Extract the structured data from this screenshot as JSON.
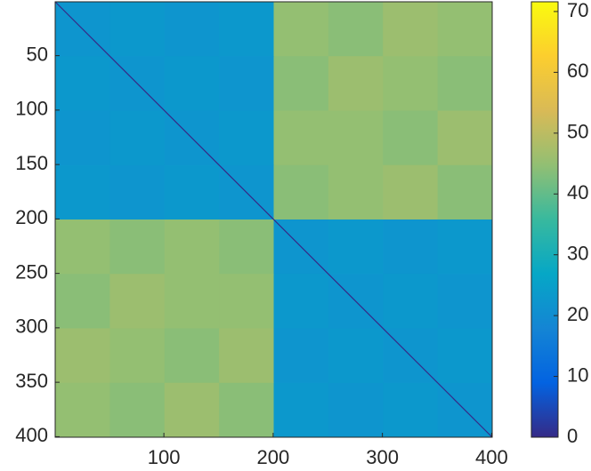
{
  "chart_data": {
    "type": "heatmap",
    "x_edges": [
      0.5,
      50.5,
      100.5,
      150.5,
      200.5,
      250.5,
      300.5,
      350.5,
      400.5
    ],
    "y_edges": [
      0.5,
      50.5,
      100.5,
      150.5,
      200.5,
      250.5,
      300.5,
      350.5,
      400.5
    ],
    "z": [
      [
        22,
        23,
        22,
        23,
        45,
        44,
        46,
        45
      ],
      [
        23,
        22,
        23,
        22,
        44,
        46,
        45,
        44
      ],
      [
        22,
        23,
        22,
        23,
        45,
        45,
        44,
        46
      ],
      [
        23,
        22,
        23,
        22,
        44,
        45,
        46,
        44
      ],
      [
        45,
        44,
        45,
        44,
        22,
        23,
        22,
        23
      ],
      [
        44,
        46,
        45,
        45,
        23,
        22,
        23,
        22
      ],
      [
        46,
        45,
        44,
        46,
        22,
        23,
        22,
        23
      ],
      [
        45,
        44,
        46,
        44,
        23,
        22,
        23,
        22
      ]
    ],
    "diagonal_value": 0,
    "xlim": [
      0.5,
      400.5
    ],
    "ylim": [
      0.5,
      400.5
    ],
    "y_reversed": true,
    "xticks": [
      100,
      200,
      300,
      400
    ],
    "yticks": [
      50,
      100,
      150,
      200,
      250,
      300,
      350,
      400
    ],
    "clim": [
      0,
      71.6
    ],
    "cticks": [
      0,
      10,
      20,
      30,
      40,
      50,
      60,
      70
    ],
    "colormap": [
      "#352a87",
      "#0363e1",
      "#1485d4",
      "#06a7c6",
      "#38b99e",
      "#92bf73",
      "#d9ba56",
      "#fcce2e",
      "#f9fb0e"
    ]
  }
}
